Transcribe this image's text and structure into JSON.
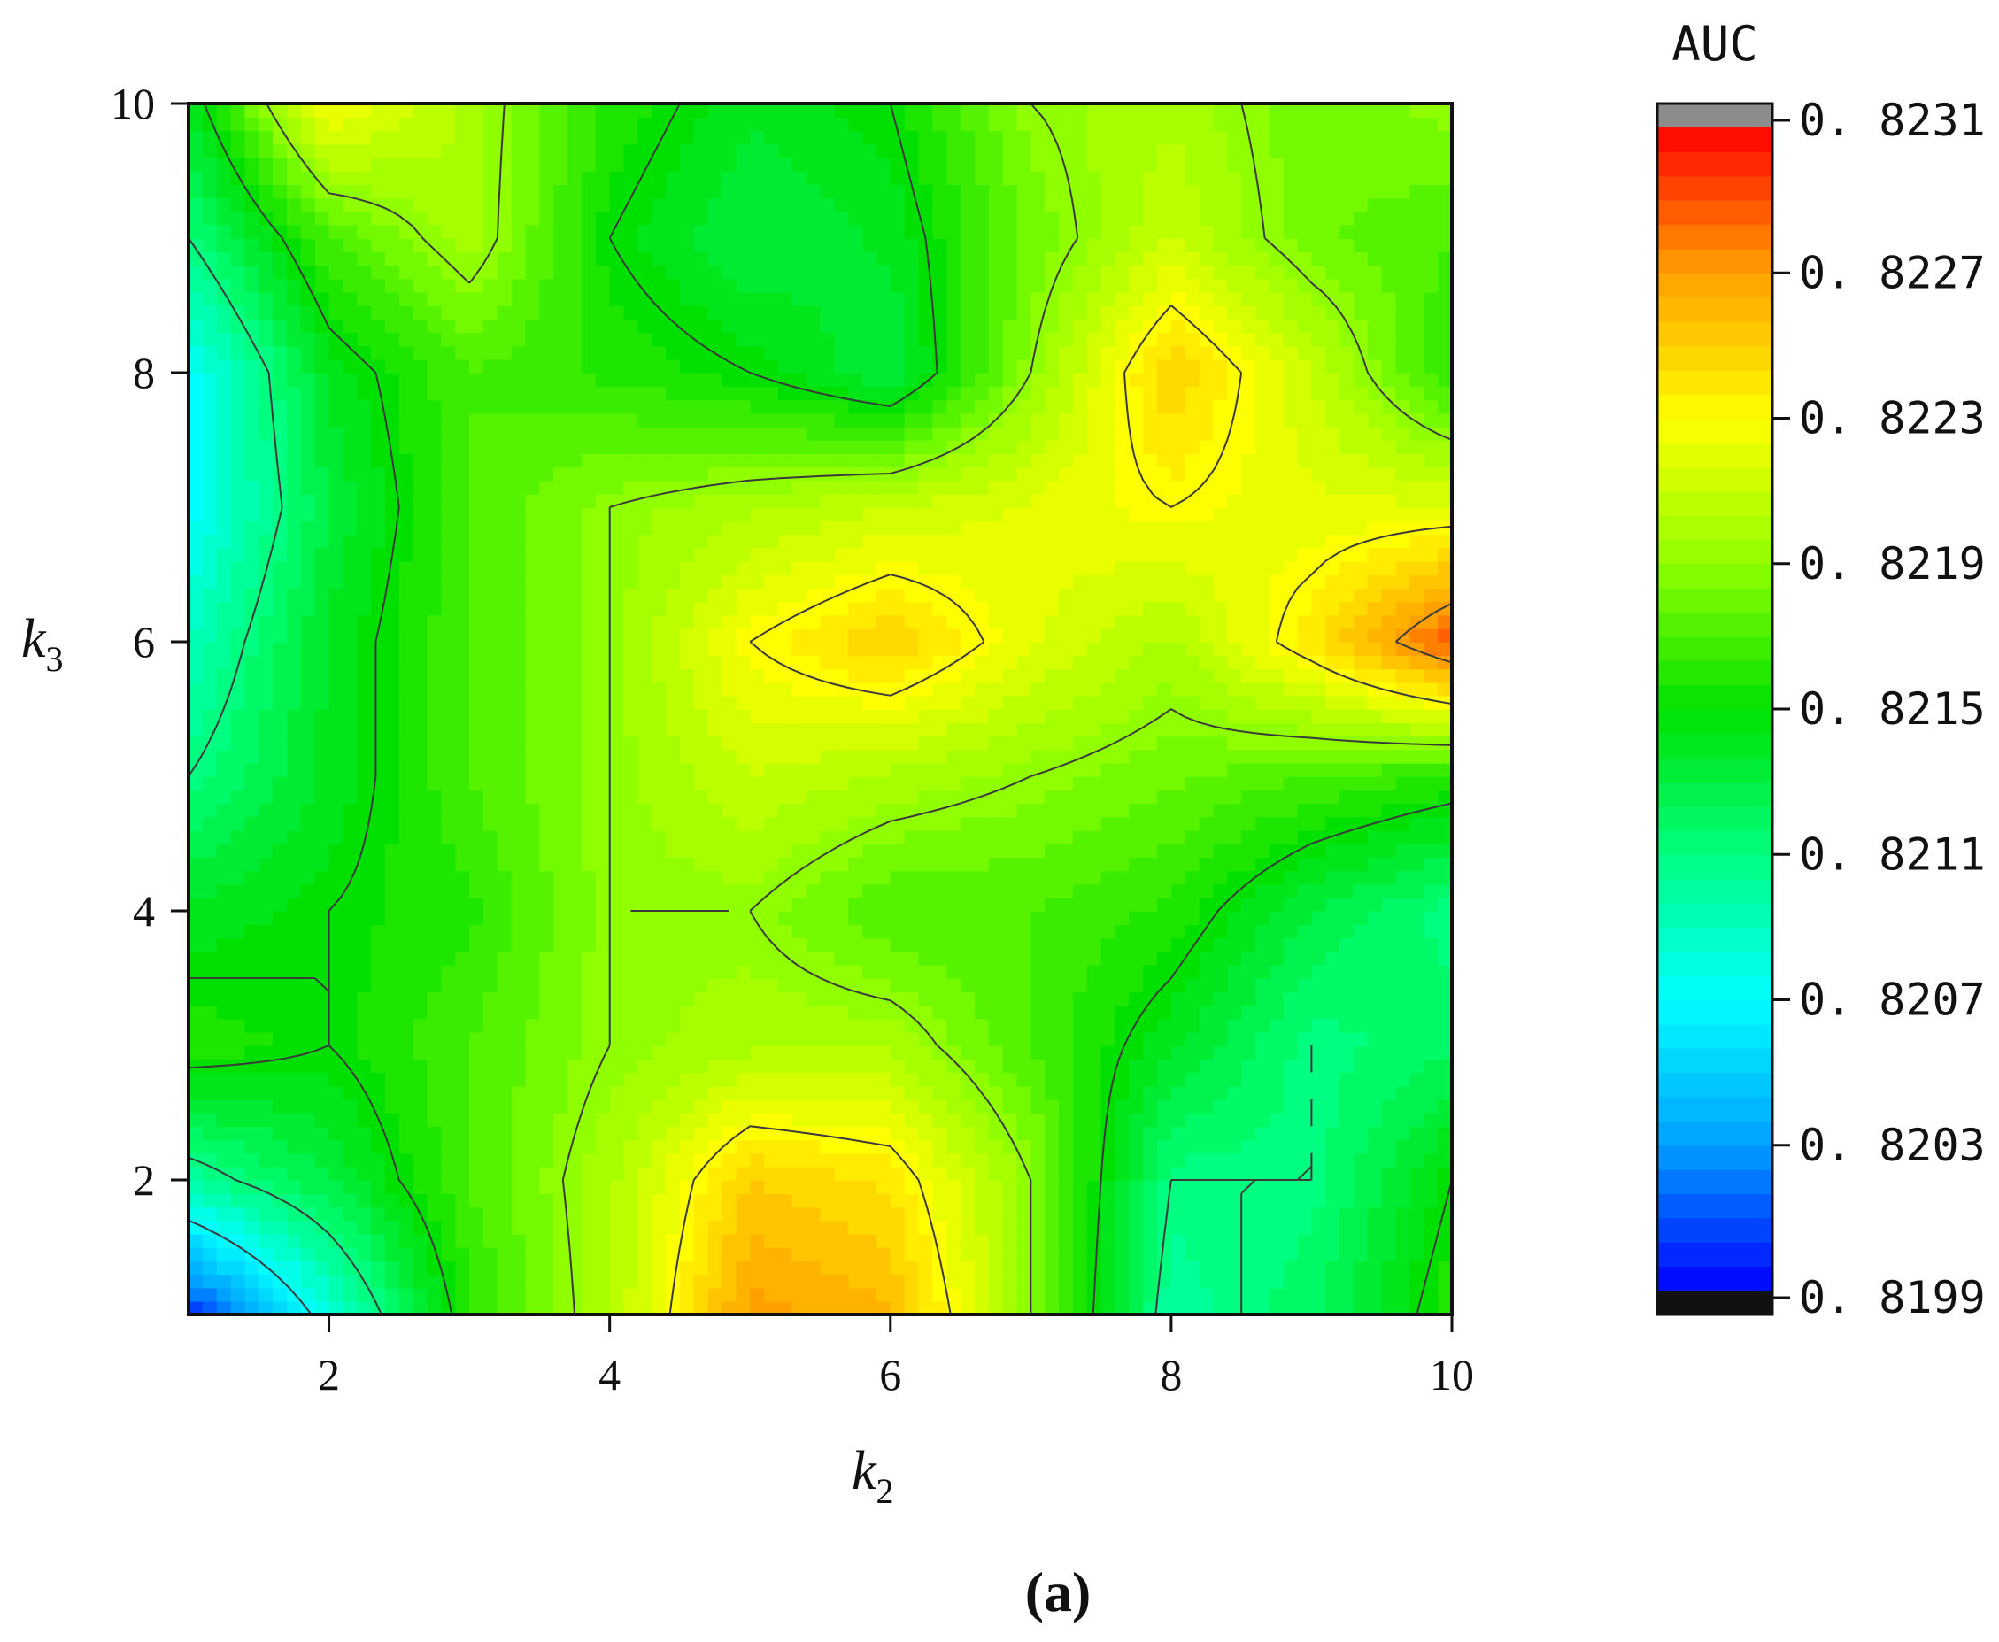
{
  "chart_data": {
    "type": "heatmap",
    "subtype": "filled-contour",
    "panel_label": "(a)",
    "x_axis": {
      "label_main": "k",
      "label_sub": "2",
      "range": [
        1,
        10
      ],
      "ticks": [
        2,
        4,
        6,
        8,
        10
      ],
      "tick_labels": [
        "2",
        "4",
        "6",
        "8",
        "10"
      ]
    },
    "y_axis": {
      "label_main": "k",
      "label_sub": "3",
      "range": [
        1,
        10
      ],
      "ticks": [
        2,
        4,
        6,
        8,
        10
      ],
      "tick_labels": [
        "2",
        "4",
        "6",
        "8",
        "10"
      ]
    },
    "colorbar": {
      "title": "AUC",
      "range": [
        0.8199,
        0.8231
      ],
      "ticks": [
        0.8199,
        0.8203,
        0.8207,
        0.8211,
        0.8215,
        0.8219,
        0.8223,
        0.8227,
        0.8231
      ],
      "tick_labels": [
        "0. 8199",
        "0. 8203",
        "0. 8207",
        "0. 8211",
        "0. 8215",
        "0. 8219",
        "0. 8223",
        "0. 8227",
        "0. 8231"
      ],
      "under_color": "#111111",
      "over_color": "#8c8c8c"
    },
    "contour_levels": [
      0.8207,
      0.8211,
      0.8215,
      0.8219,
      0.8223,
      0.8227
    ],
    "colormap": [
      "#0000ff",
      "#00a0ff",
      "#00ffff",
      "#00ff80",
      "#00e000",
      "#90ff00",
      "#ffff00",
      "#ffa000",
      "#ff0000"
    ],
    "grid": false,
    "x": [
      1,
      2,
      3,
      4,
      5,
      6,
      7,
      8,
      9,
      10
    ],
    "y": [
      1,
      2,
      3,
      4,
      5,
      6,
      7,
      8,
      9,
      10
    ],
    "z": [
      [
        0.82,
        0.8208,
        0.8216,
        0.822,
        0.8227,
        0.8226,
        0.8219,
        0.821,
        0.8212,
        0.8216
      ],
      [
        0.821,
        0.8213,
        0.8217,
        0.822,
        0.8225,
        0.8224,
        0.8219,
        0.8211,
        0.8211,
        0.8215
      ],
      [
        0.8216,
        0.8215,
        0.8217,
        0.8219,
        0.822,
        0.822,
        0.8217,
        0.8214,
        0.8211,
        0.8212
      ],
      [
        0.8214,
        0.8215,
        0.8216,
        0.8219,
        0.8219,
        0.8217,
        0.8217,
        0.8216,
        0.8213,
        0.8211
      ],
      [
        0.8211,
        0.8214,
        0.8217,
        0.8219,
        0.8221,
        0.822,
        0.8219,
        0.8218,
        0.8217,
        0.8216
      ],
      [
        0.8209,
        0.8214,
        0.8217,
        0.8219,
        0.8223,
        0.8225,
        0.8222,
        0.822,
        0.8224,
        0.8229
      ],
      [
        0.8207,
        0.8213,
        0.8217,
        0.8219,
        0.822,
        0.8221,
        0.8222,
        0.8223,
        0.8222,
        0.8222
      ],
      [
        0.8207,
        0.8214,
        0.8217,
        0.8216,
        0.8215,
        0.8213,
        0.8219,
        0.8225,
        0.8221,
        0.8216
      ],
      [
        0.8211,
        0.8217,
        0.822,
        0.8215,
        0.8213,
        0.8214,
        0.8218,
        0.8221,
        0.8218,
        0.8217
      ],
      [
        0.8214,
        0.8223,
        0.822,
        0.8216,
        0.8214,
        0.8215,
        0.8219,
        0.822,
        0.8218,
        0.8219
      ]
    ]
  }
}
